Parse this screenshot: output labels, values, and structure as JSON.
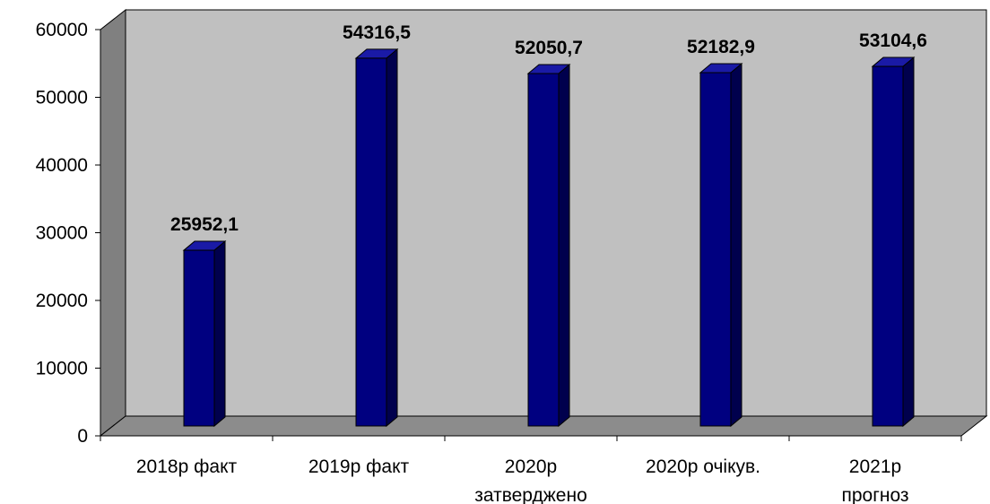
{
  "chart_data": {
    "type": "bar",
    "categories": [
      [
        "2018р факт"
      ],
      [
        "2019р факт"
      ],
      [
        "2020р",
        "затверджено"
      ],
      [
        "2020р очікув."
      ],
      [
        "2021р",
        "прогноз"
      ]
    ],
    "values": [
      25952.1,
      54316.5,
      52050.7,
      52182.9,
      53104.6
    ],
    "data_labels": [
      "25952,1",
      "54316,5",
      "52050,7",
      "52182,9",
      "53104,6"
    ],
    "ylim": [
      0,
      60000
    ],
    "yticks": [
      0,
      10000,
      20000,
      30000,
      40000,
      50000,
      60000
    ],
    "ytick_labels": [
      "0",
      "10000",
      "20000",
      "30000",
      "40000",
      "50000",
      "60000"
    ],
    "title": "",
    "xlabel": "",
    "ylabel": "",
    "grid": false,
    "legend": "none",
    "style": "3d-column",
    "colors": {
      "bar_front": "#000080",
      "bar_side": "#00004d",
      "bar_top": "#1a1aa6",
      "back_wall": "#c0c0c0",
      "side_wall": "#808080",
      "floor": "#8c8c8c"
    }
  }
}
